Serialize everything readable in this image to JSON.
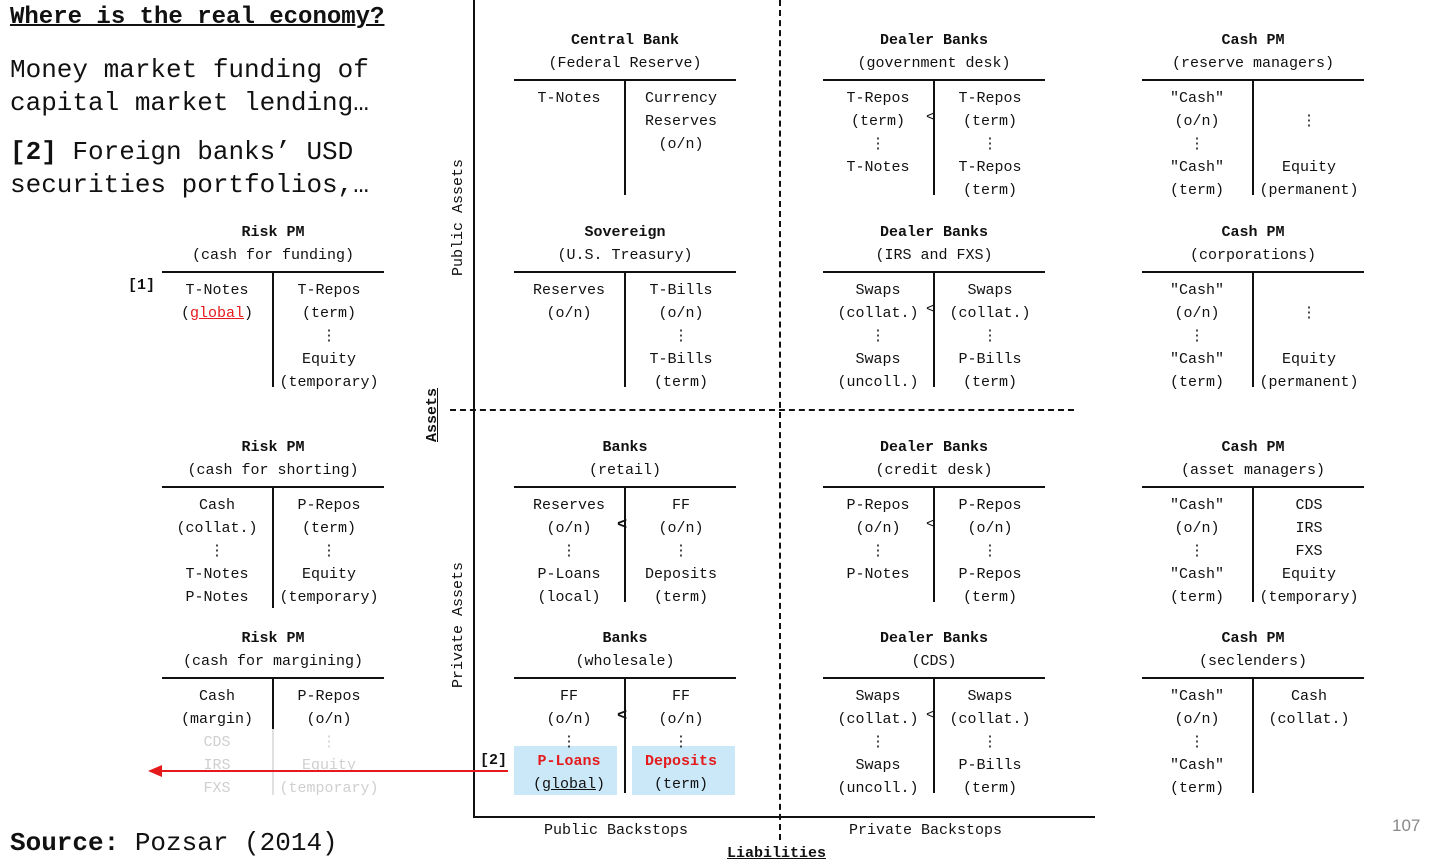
{
  "header": {
    "title": "Where is the real economy?",
    "subtitle": "Money market funding of\ncapital market lending…",
    "subtitle2_tag": "[2]",
    "subtitle2_text": " Foreign banks’ USD\nsecurities portfolios,…"
  },
  "footer": {
    "source_label": "Source:",
    "source_text": " Pozsar (2014)",
    "page_number": "107"
  },
  "axes": {
    "public_assets": "Public Assets",
    "private_assets": "Private Assets",
    "assets": "Assets",
    "liabilities": "Liabilities",
    "public_backstops": "Public Backstops",
    "private_backstops": "Private Backstops"
  },
  "tags": {
    "tag1": "[1]",
    "tag2": "[2]"
  },
  "colors": {
    "highlight": "#cbe8f8",
    "arrow": "#e41a1c",
    "emphasis": "#e41a1c"
  },
  "accounts": {
    "risk_funding": {
      "name": "Risk PM",
      "sub": "(cash for funding)",
      "left": "T-Notes\n(global)",
      "right": "T-Repos\n(term)\n⋮\nEquity\n(temporary)",
      "mid": ""
    },
    "risk_shorting": {
      "name": "Risk PM",
      "sub": "(cash for shorting)",
      "left": "Cash\n(collat.)\n⋮\nT-Notes\nP-Notes",
      "right": "P-Repos\n(term)\n⋮\nEquity\n(temporary)",
      "mid": ""
    },
    "risk_margining": {
      "name": "Risk PM",
      "sub": "(cash for margining)",
      "left_top": "Cash\n(margin)",
      "left_faded": "CDS\nIRS\nFXS",
      "right_top": "P-Repos\n(o/n)",
      "right_faded": "⋮\nEquity\n(temporary)",
      "mid": ""
    },
    "central_bank": {
      "name": "Central Bank",
      "sub": "(Federal Reserve)",
      "left": "T-Notes",
      "right": "Currency\nReserves\n(o/n)",
      "mid": ""
    },
    "sovereign": {
      "name": "Sovereign",
      "sub": "(U.S. Treasury)",
      "left": "Reserves\n(o/n)",
      "right": "T-Bills\n(o/n)\n⋮\nT-Bills\n(term)",
      "mid": ""
    },
    "banks_retail": {
      "name": "Banks",
      "sub": "(retail)",
      "left": "Reserves\n(o/n)\n⋮\nP-Loans\n(local)",
      "right": "FF\n(o/n)\n⋮\nDeposits\n(term)",
      "mid": "<"
    },
    "banks_wholesale": {
      "name": "Banks",
      "sub": "(wholesale)",
      "left_top": "FF\n(o/n)\n⋮",
      "left_hl1": "P-Loans",
      "left_hl2": "global",
      "right_top": "FF\n(o/n)\n⋮",
      "right_hl1": "Deposits",
      "right_hl2": "(term)",
      "mid": "<"
    },
    "dealer_gov": {
      "name": "Dealer Banks",
      "sub": "(government desk)",
      "left": "T-Repos\n(term)\n⋮\nT-Notes",
      "right": "T-Repos\n(term)\n⋮\nT-Repos\n(term)",
      "mid": "<"
    },
    "dealer_irs": {
      "name": "Dealer Banks",
      "sub": "(IRS and FXS)",
      "left": "Swaps\n(collat.)\n⋮\nSwaps\n(uncoll.)",
      "right": "Swaps\n(collat.)\n⋮\nP-Bills\n(term)",
      "mid": "<"
    },
    "dealer_credit": {
      "name": "Dealer Banks",
      "sub": "(credit desk)",
      "left": "P-Repos\n(o/n)\n⋮\nP-Notes",
      "right": "P-Repos\n(o/n)\n⋮\nP-Repos\n(term)",
      "mid": "<"
    },
    "dealer_cds": {
      "name": "Dealer Banks",
      "sub": "(CDS)",
      "left": "Swaps\n(collat.)\n⋮\nSwaps\n(uncoll.)",
      "right": "Swaps\n(collat.)\n⋮\nP-Bills\n(term)",
      "mid": "<"
    },
    "cash_reserve": {
      "name": "Cash PM",
      "sub": "(reserve managers)",
      "left": "\"Cash\"\n(o/n)\n⋮\n\"Cash\"\n(term)",
      "right": "\n⋮\n\nEquity\n(permanent)",
      "mid": ""
    },
    "cash_corp": {
      "name": "Cash PM",
      "sub": "(corporations)",
      "left": "\"Cash\"\n(o/n)\n⋮\n\"Cash\"\n(term)",
      "right": "\n⋮\n\nEquity\n(permanent)",
      "mid": ""
    },
    "cash_asset": {
      "name": "Cash PM",
      "sub": "(asset managers)",
      "left": "\"Cash\"\n(o/n)\n⋮\n\"Cash\"\n(term)",
      "right": "CDS\nIRS\nFXS\nEquity\n(temporary)",
      "mid": ""
    },
    "cash_sec": {
      "name": "Cash PM",
      "sub": "(seclenders)",
      "left": "\"Cash\"\n(o/n)\n⋮\n\"Cash\"\n(term)",
      "right": "Cash\n(collat.)",
      "mid": ""
    }
  }
}
